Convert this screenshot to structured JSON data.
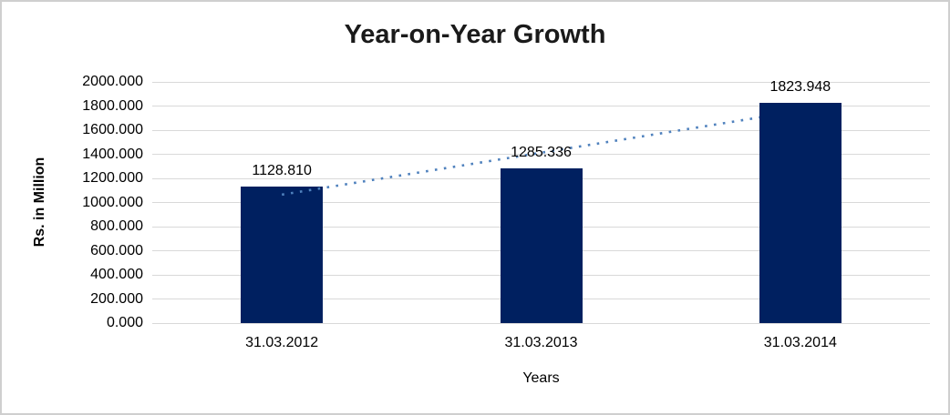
{
  "chart_data": {
    "type": "bar",
    "title": "Year-on-Year Growth",
    "xlabel": "Years",
    "ylabel": "Rs. in Million",
    "categories": [
      "31.03.2012",
      "31.03.2013",
      "31.03.2014"
    ],
    "values": [
      1128.81,
      1285.336,
      1823.948
    ],
    "data_labels": [
      "1128.810",
      "1285.336",
      "1823.948"
    ],
    "ylim": [
      0,
      2000
    ],
    "ytick_step": 200,
    "ytick_labels": [
      "0.000",
      "200.000",
      "400.000",
      "600.000",
      "800.000",
      "1000.000",
      "1200.000",
      "1400.000",
      "1600.000",
      "1800.000",
      "2000.000"
    ],
    "grid": "horizontal",
    "legend_position": "none",
    "bar_color": "#002060",
    "gridline_color": "#d9d9d9",
    "trendline": {
      "type": "linear",
      "style": "dotted",
      "color": "#4f81bd"
    }
  }
}
